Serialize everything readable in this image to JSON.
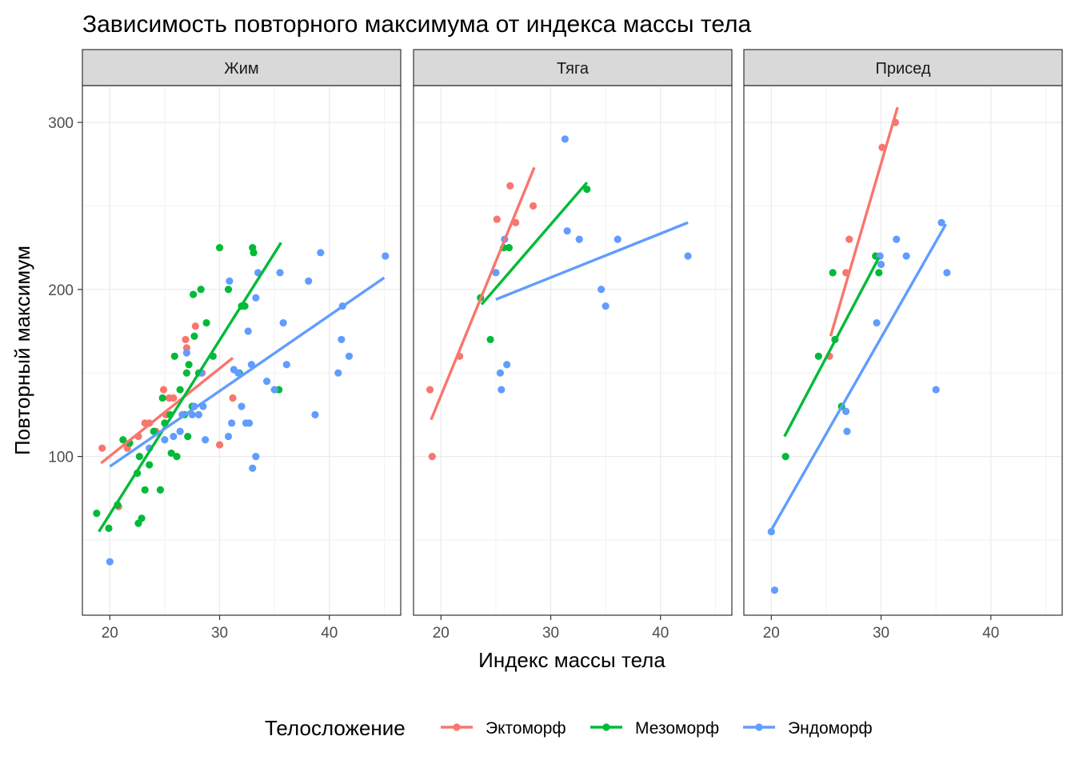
{
  "chart_data": {
    "type": "scatter",
    "title": "Зависимость повторного максимума от индекса массы тела",
    "xlabel": "Индекс массы тела",
    "ylabel": "Повторный максимум",
    "xlim": [
      17.5,
      46.5
    ],
    "ylim": [
      5,
      322
    ],
    "x_ticks": [
      20,
      30,
      40
    ],
    "y_ticks": [
      100,
      200,
      300
    ],
    "grid": true,
    "legend": {
      "title": "Телосложение",
      "position": "bottom",
      "entries": [
        "Эктоморф",
        "Мезоморф",
        "Эндоморф"
      ]
    },
    "colors": {
      "Эктоморф": "#F8766D",
      "Мезоморф": "#00BA38",
      "Эндоморф": "#619CFF"
    },
    "panels": [
      {
        "name": "Жим",
        "series": [
          {
            "name": "Эктоморф",
            "points": [
              [
                19.3,
                105
              ],
              [
                20.8,
                70
              ],
              [
                21.6,
                105
              ],
              [
                22.6,
                112
              ],
              [
                23.2,
                120
              ],
              [
                23.6,
                120
              ],
              [
                24.2,
                115
              ],
              [
                24.9,
                140
              ],
              [
                25.1,
                125
              ],
              [
                25.4,
                135
              ],
              [
                25.8,
                135
              ],
              [
                26.9,
                170
              ],
              [
                27.0,
                165
              ],
              [
                27.8,
                178
              ],
              [
                28.4,
                150
              ],
              [
                30.0,
                107
              ],
              [
                31.2,
                135
              ]
            ],
            "fit": [
              [
                19.2,
                96
              ],
              [
                31.2,
                159
              ]
            ]
          },
          {
            "name": "Мезоморф",
            "points": [
              [
                18.8,
                66
              ],
              [
                19.9,
                57
              ],
              [
                20.7,
                71
              ],
              [
                21.2,
                110
              ],
              [
                21.8,
                108
              ],
              [
                22.5,
                90
              ],
              [
                22.6,
                60
              ],
              [
                22.7,
                100
              ],
              [
                22.9,
                63
              ],
              [
                23.2,
                80
              ],
              [
                23.6,
                95
              ],
              [
                24.0,
                115
              ],
              [
                24.6,
                80
              ],
              [
                24.8,
                135
              ],
              [
                25.0,
                120
              ],
              [
                25.5,
                125
              ],
              [
                25.6,
                102
              ],
              [
                25.9,
                160
              ],
              [
                26.1,
                100
              ],
              [
                26.4,
                140
              ],
              [
                26.8,
                125
              ],
              [
                27.0,
                150
              ],
              [
                27.1,
                112
              ],
              [
                27.2,
                155
              ],
              [
                27.5,
                130
              ],
              [
                27.6,
                197
              ],
              [
                27.7,
                172
              ],
              [
                28.1,
                150
              ],
              [
                28.3,
                200
              ],
              [
                28.8,
                180
              ],
              [
                29.4,
                160
              ],
              [
                30.0,
                225
              ],
              [
                30.8,
                200
              ],
              [
                31.8,
                150
              ],
              [
                32.0,
                190
              ],
              [
                32.3,
                190
              ],
              [
                33.0,
                225
              ],
              [
                33.1,
                222
              ],
              [
                35.4,
                140
              ]
            ],
            "fit": [
              [
                19.0,
                55
              ],
              [
                35.6,
                228
              ]
            ]
          },
          {
            "name": "Эндоморф",
            "points": [
              [
                20.0,
                37
              ],
              [
                23.6,
                105
              ],
              [
                25.0,
                110
              ],
              [
                25.8,
                112
              ],
              [
                26.4,
                115
              ],
              [
                26.6,
                125
              ],
              [
                27.0,
                162
              ],
              [
                27.5,
                125
              ],
              [
                27.7,
                130
              ],
              [
                28.1,
                125
              ],
              [
                28.3,
                150
              ],
              [
                28.5,
                130
              ],
              [
                28.7,
                110
              ],
              [
                30.8,
                112
              ],
              [
                30.9,
                205
              ],
              [
                31.1,
                120
              ],
              [
                31.3,
                152
              ],
              [
                31.7,
                150
              ],
              [
                32.0,
                130
              ],
              [
                32.4,
                120
              ],
              [
                32.6,
                175
              ],
              [
                32.7,
                120
              ],
              [
                32.9,
                155
              ],
              [
                33.0,
                93
              ],
              [
                33.3,
                100
              ],
              [
                33.3,
                195
              ],
              [
                33.5,
                210
              ],
              [
                34.3,
                145
              ],
              [
                35.0,
                140
              ],
              [
                35.5,
                210
              ],
              [
                35.8,
                180
              ],
              [
                36.1,
                155
              ],
              [
                38.1,
                205
              ],
              [
                38.7,
                125
              ],
              [
                39.2,
                222
              ],
              [
                40.8,
                150
              ],
              [
                41.1,
                170
              ],
              [
                41.2,
                190
              ],
              [
                41.8,
                160
              ],
              [
                45.1,
                220
              ]
            ],
            "fit": [
              [
                20.0,
                94
              ],
              [
                45.0,
                207
              ]
            ]
          }
        ]
      },
      {
        "name": "Тяга",
        "series": [
          {
            "name": "Эктоморф",
            "points": [
              [
                19.0,
                140
              ],
              [
                19.2,
                100
              ],
              [
                21.7,
                160
              ],
              [
                25.1,
                242
              ],
              [
                26.3,
                262
              ],
              [
                26.8,
                240
              ],
              [
                28.4,
                250
              ]
            ],
            "fit": [
              [
                19.1,
                122
              ],
              [
                28.5,
                273
              ]
            ]
          },
          {
            "name": "Мезоморф",
            "points": [
              [
                23.6,
                195
              ],
              [
                24.5,
                170
              ],
              [
                25.7,
                225
              ],
              [
                26.2,
                225
              ],
              [
                33.3,
                260
              ]
            ],
            "fit": [
              [
                23.7,
                191
              ],
              [
                33.3,
                264
              ]
            ]
          },
          {
            "name": "Эндоморф",
            "points": [
              [
                25.0,
                210
              ],
              [
                25.4,
                150
              ],
              [
                25.5,
                140
              ],
              [
                25.8,
                230
              ],
              [
                26.0,
                155
              ],
              [
                31.3,
                290
              ],
              [
                31.5,
                235
              ],
              [
                32.6,
                230
              ],
              [
                34.6,
                200
              ],
              [
                35.0,
                190
              ],
              [
                36.1,
                230
              ],
              [
                42.5,
                220
              ]
            ],
            "fit": [
              [
                25.0,
                194
              ],
              [
                42.5,
                240
              ]
            ]
          }
        ]
      },
      {
        "name": "Присед",
        "series": [
          {
            "name": "Эктоморф",
            "points": [
              [
                25.3,
                160
              ],
              [
                26.8,
                210
              ],
              [
                27.1,
                230
              ],
              [
                30.1,
                285
              ],
              [
                31.3,
                300
              ]
            ],
            "fit": [
              [
                25.4,
                172
              ],
              [
                31.5,
                309
              ]
            ]
          },
          {
            "name": "Мезоморф",
            "points": [
              [
                21.3,
                100
              ],
              [
                24.3,
                160
              ],
              [
                25.6,
                210
              ],
              [
                25.8,
                170
              ],
              [
                26.4,
                130
              ],
              [
                29.5,
                220
              ],
              [
                29.8,
                210
              ]
            ],
            "fit": [
              [
                21.2,
                112
              ],
              [
                29.8,
                219
              ]
            ]
          },
          {
            "name": "Эндоморф",
            "points": [
              [
                20.0,
                55
              ],
              [
                20.3,
                20
              ],
              [
                26.8,
                127
              ],
              [
                26.9,
                115
              ],
              [
                29.6,
                180
              ],
              [
                29.9,
                220
              ],
              [
                30.0,
                215
              ],
              [
                31.4,
                230
              ],
              [
                32.3,
                220
              ],
              [
                35.0,
                140
              ],
              [
                35.5,
                240
              ],
              [
                36.0,
                210
              ]
            ],
            "fit": [
              [
                20.0,
                56
              ],
              [
                35.9,
                239
              ]
            ]
          }
        ]
      }
    ]
  }
}
